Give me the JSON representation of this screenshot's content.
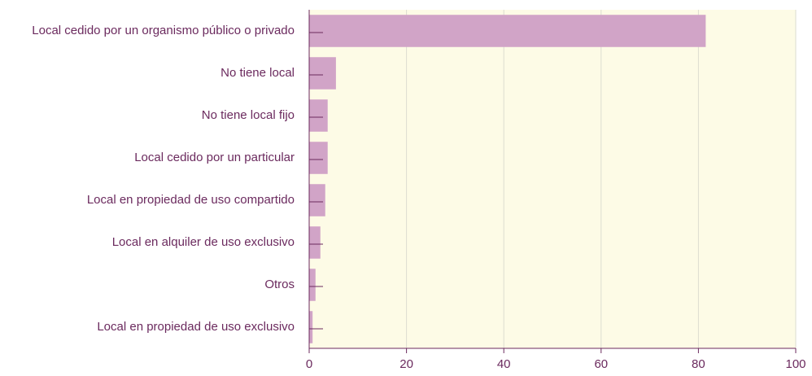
{
  "chart_data": {
    "type": "barh",
    "categories": [
      "Local cedido por un organismo público o privado",
      "No tiene local",
      "No tiene local fijo",
      "Local cedido por un particular",
      "Local en propiedad de uso compartido",
      "Local en alquiler de uso exclusivo",
      "Otros",
      "Local en propiedad de uso exclusivo"
    ],
    "values": [
      81.5,
      5.5,
      3.8,
      3.8,
      3.3,
      2.3,
      1.3,
      0.7
    ],
    "color": "#d1a4c7",
    "xlim": [
      0,
      100
    ],
    "xticks": [
      0,
      20,
      40,
      60,
      80,
      100
    ],
    "grid": true
  }
}
